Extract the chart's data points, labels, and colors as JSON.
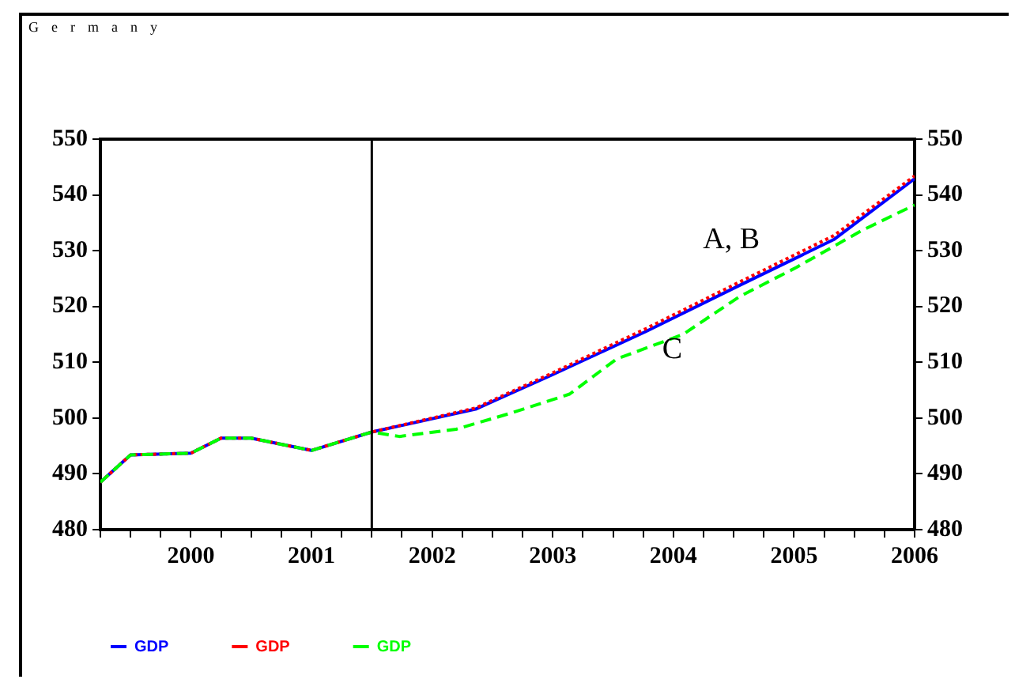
{
  "chart_data": {
    "type": "line",
    "title": "Germany",
    "xlim": [
      1999.25,
      2006
    ],
    "xticks": [
      {
        "value": 1999.25,
        "label": null
      },
      {
        "value": 1999.5,
        "label": null
      },
      {
        "value": 1999.75,
        "label": null
      },
      2000,
      {
        "value": 2000.25,
        "label": null
      },
      {
        "value": 2000.5,
        "label": null
      },
      {
        "value": 2000.75,
        "label": null
      },
      2001,
      {
        "value": 2001.25,
        "label": null
      },
      {
        "value": 2001.5,
        "label": null
      },
      {
        "value": 2001.75,
        "label": null
      },
      2002,
      {
        "value": 2002.25,
        "label": null
      },
      {
        "value": 2002.5,
        "label": null
      },
      {
        "value": 2002.75,
        "label": null
      },
      2003,
      {
        "value": 2003.25,
        "label": null
      },
      {
        "value": 2003.5,
        "label": null
      },
      {
        "value": 2003.75,
        "label": null
      },
      2004,
      {
        "value": 2004.25,
        "label": null
      },
      {
        "value": 2004.5,
        "label": null
      },
      {
        "value": 2004.75,
        "label": null
      },
      2005,
      {
        "value": 2005.25,
        "label": null
      },
      {
        "value": 2005.5,
        "label": null
      },
      {
        "value": 2005.75,
        "label": null
      },
      2006
    ],
    "ylim": [
      480,
      550
    ],
    "yticks": [
      480,
      490,
      500,
      510,
      520,
      530,
      540,
      550
    ],
    "y2lim": [
      480,
      550
    ],
    "y2ticks": [
      480,
      490,
      500,
      510,
      520,
      530,
      540,
      550
    ],
    "grid": false,
    "legend": "bottom",
    "marker": "none",
    "series": [
      {
        "name": "GDP",
        "color": "#0000ff",
        "line_style": "solid",
        "x": [
          1999.25,
          1999.5,
          2000,
          2000.25,
          2000.5,
          2001,
          2001.5,
          2002.36,
          2002.98,
          2003.77,
          2004.55,
          2005.33,
          2006
        ],
        "values": [
          488.5,
          493.4,
          493.7,
          496.4,
          496.4,
          494.2,
          497.5,
          501.6,
          507.6,
          515.5,
          523.8,
          532,
          542.9
        ]
      },
      {
        "name": "GDP",
        "color": "#ff0000",
        "line_style": "dotted",
        "x": [
          1999.25,
          1999.5,
          2000,
          2000.25,
          2000.5,
          2001,
          2001.5,
          2002.36,
          2002.98,
          2003.77,
          2004.55,
          2005.33,
          2006
        ],
        "values": [
          488.5,
          493.4,
          493.7,
          496.4,
          496.4,
          494.2,
          497.5,
          501.8,
          507.9,
          516,
          524.4,
          532.7,
          543.4
        ]
      },
      {
        "name": "GDP",
        "color": "#00ff00",
        "line_style": "dashed",
        "x": [
          1999.25,
          1999.5,
          2000,
          2000.25,
          2000.5,
          2001,
          2001.5,
          2001.73,
          2002.2,
          2002.67,
          2003.14,
          2003.53,
          2004.08,
          2004.55,
          2005.02,
          2005.56,
          2006
        ],
        "values": [
          488.5,
          493.4,
          493.7,
          496.4,
          496.4,
          494.2,
          497.5,
          496.7,
          498,
          501,
          504.3,
          510.6,
          515,
          521.8,
          527,
          533.6,
          538.2
        ]
      }
    ],
    "ref_lines": [
      {
        "axis": "x",
        "value": 2001.5,
        "color": "#000000"
      }
    ],
    "annotations": [
      "A, B",
      "C"
    ]
  }
}
